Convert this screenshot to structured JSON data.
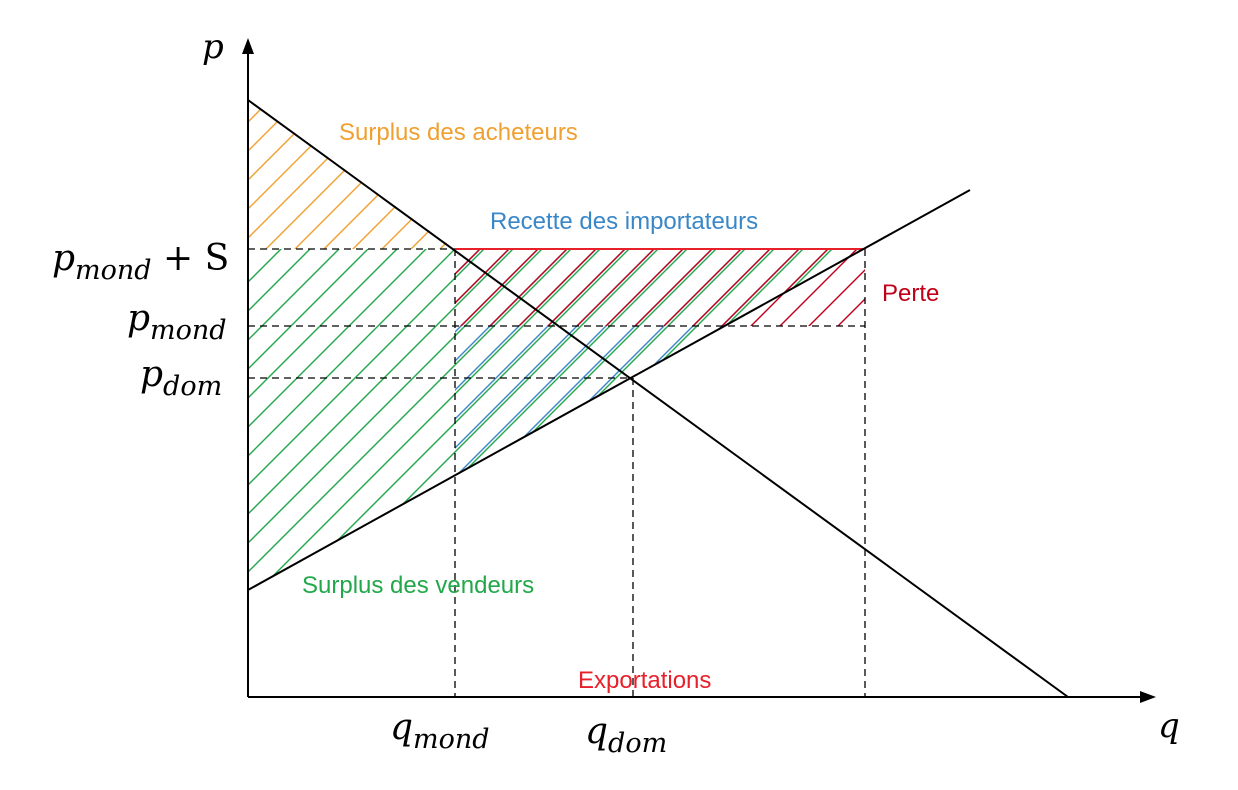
{
  "axes": {
    "y_label": "p",
    "x_label": "q"
  },
  "price_levels": {
    "p_mond_plus_s": {
      "base": "p",
      "sub": "mond",
      "suffix": " + S"
    },
    "p_mond": {
      "base": "p",
      "sub": "mond"
    },
    "p_dom": {
      "base": "p",
      "sub": "dom"
    }
  },
  "quantity_levels": {
    "q_mond": {
      "base": "q",
      "sub": "mond"
    },
    "q_dom": {
      "base": "q",
      "sub": "dom"
    }
  },
  "regions": {
    "buyer_surplus": {
      "label": "Surplus des acheteurs",
      "color": "#f0a030"
    },
    "importer_revenue": {
      "label": "Recette des importateurs",
      "color": "#3a87c8"
    },
    "loss": {
      "label": "Perte",
      "color": "#c00018"
    },
    "seller_surplus": {
      "label": "Surplus des vendeurs",
      "color": "#22a84a"
    },
    "exports": {
      "label": "Exportations",
      "color": "#e8202a"
    }
  }
}
